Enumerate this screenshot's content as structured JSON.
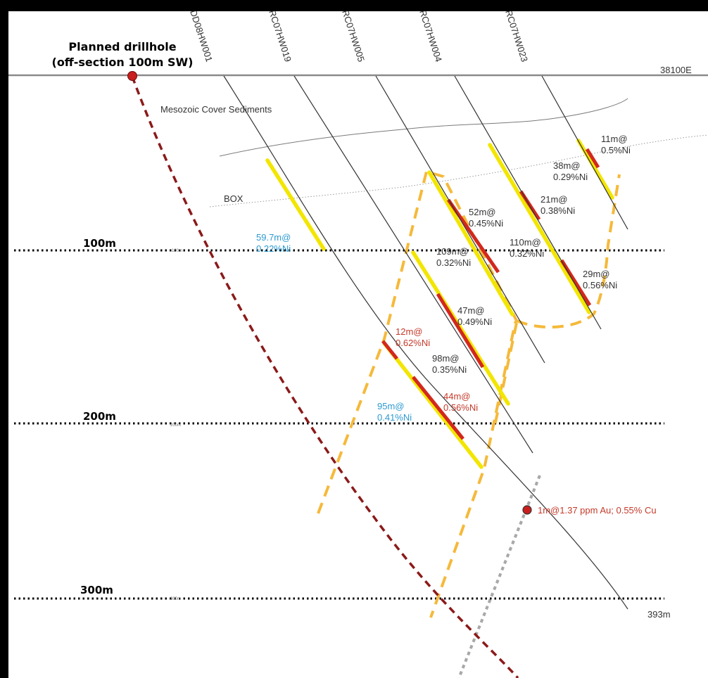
{
  "planned": {
    "title_line1": "Planned drillhole",
    "title_line2": "(off-section 100m SW)"
  },
  "holes": [
    {
      "id": "DD08HW001"
    },
    {
      "id": "RC07HW019"
    },
    {
      "id": "RC07HW005"
    },
    {
      "id": "RC07HW004"
    },
    {
      "id": "RC07HW023"
    }
  ],
  "grid_ref": "38100E",
  "depth_labels": {
    "d100": "100m",
    "d200": "200m",
    "d300": "300m",
    "small100": "100m",
    "small200": "200m",
    "small300": "300m"
  },
  "units": {
    "cover": "Mesozoic Cover Sediments",
    "box": "BOX"
  },
  "intercepts": [
    {
      "line1": "11m@",
      "line2": "0.5%Ni",
      "color": "#333333"
    },
    {
      "line1": "38m@",
      "line2": "0.29%Ni",
      "color": "#333333"
    },
    {
      "line1": "21m@",
      "line2": "0.38%Ni",
      "color": "#333333"
    },
    {
      "line1": "52m@",
      "line2": "0.45%Ni",
      "color": "#333333"
    },
    {
      "line1": "59.7m@",
      "line2": "0.22%Ni",
      "color": "#2e9ad0"
    },
    {
      "line1": "109m@",
      "line2": "0.32%Ni",
      "color": "#333333"
    },
    {
      "line1": "110m@",
      "line2": "0.32%Ni",
      "color": "#333333"
    },
    {
      "line1": "29m@",
      "line2": "0.56%Ni",
      "color": "#333333"
    },
    {
      "line1": "47m@",
      "line2": "0.49%Ni",
      "color": "#333333"
    },
    {
      "line1": "12m@",
      "line2": "0.62%Ni",
      "color": "#c43a2a"
    },
    {
      "line1": "98m@",
      "line2": "0.35%Ni",
      "color": "#333333"
    },
    {
      "line1": "44m@",
      "line2": "0.56%Ni",
      "color": "#c43a2a"
    },
    {
      "line1": "95m@",
      "line2": "0.41%Ni",
      "color": "#2e9ad0"
    }
  ],
  "gold_note": "1m@1.37 ppm Au; 0.55% Cu",
  "eoh": "393m",
  "colors": {
    "planned": "#8b1a1a",
    "envelope": "#f5b93a",
    "ore_yellow": "#f2e600",
    "ore_red": "#d2281e",
    "fault": "#a8a8a8",
    "hole": "#333333"
  }
}
